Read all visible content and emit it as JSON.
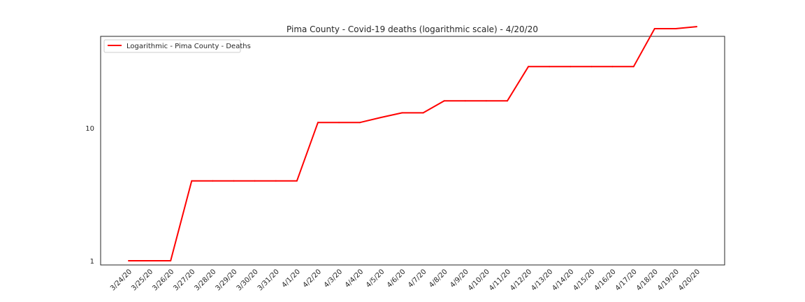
{
  "chart_data": {
    "type": "line",
    "title": "Pima County - Covid-19 deaths (logarithmic scale) - 4/20/20",
    "xlabel": "",
    "ylabel": "",
    "y_scale": "log",
    "ylim": [
      0.93,
      49
    ],
    "grid": false,
    "legend_position": "top-left",
    "categories": [
      "3/24/20",
      "3/25/20",
      "3/26/20",
      "3/27/20",
      "3/28/20",
      "3/29/20",
      "3/30/20",
      "3/31/20",
      "4/1/20",
      "4/2/20",
      "4/3/20",
      "4/4/20",
      "4/5/20",
      "4/6/20",
      "4/7/20",
      "4/8/20",
      "4/9/20",
      "4/10/20",
      "4/11/20",
      "4/12/20",
      "4/13/20",
      "4/14/20",
      "4/15/20",
      "4/16/20",
      "4/17/20",
      "4/18/20",
      "4/19/20",
      "4/20/20"
    ],
    "y_ticks": [
      {
        "value": 1,
        "label": "1"
      },
      {
        "value": 10,
        "label": "10"
      }
    ],
    "series": [
      {
        "name": "Logarithmic - Pima County - Deaths",
        "color": "#ff0000",
        "values": [
          1,
          1,
          1,
          4,
          4,
          4,
          4,
          4,
          4,
          11,
          11,
          11,
          12,
          13,
          13,
          16,
          16,
          16,
          16,
          29,
          29,
          29,
          29,
          29,
          29,
          56,
          56,
          58
        ]
      }
    ]
  }
}
